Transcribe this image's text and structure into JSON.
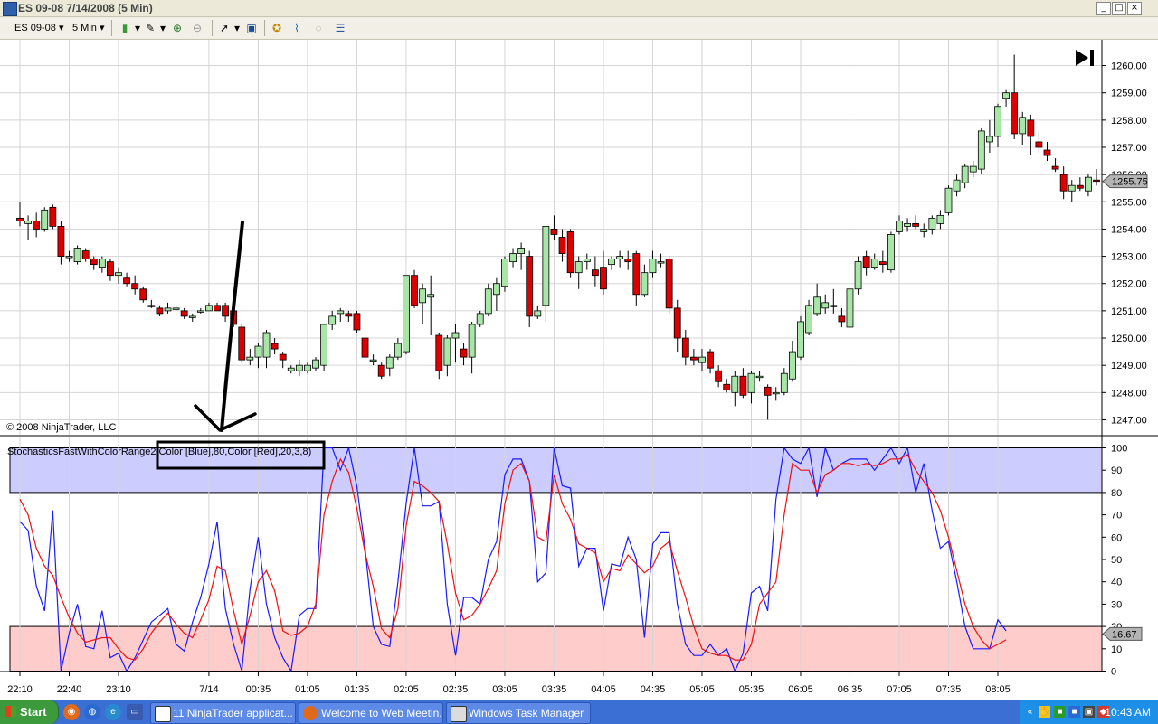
{
  "window": {
    "title": "ES 09-08  7/14/2008 (5 Min)"
  },
  "toolbar": {
    "instrument": "ES 09-08",
    "interval": "5 Min"
  },
  "copyright": "© 2008 NinjaTrader, LLC",
  "indicator_label": {
    "prefix": "StochasticsFastWithColorRange",
    "boxed": "2,Color [Blue],80,Color [Red],20,3,8)"
  },
  "colors": {
    "up": "#a8e6a8",
    "down": "#dd0000",
    "k_line": "#1a1aff",
    "d_line": "#ee1111",
    "upper_band": "#ccccff",
    "lower_band": "#ffcccc"
  },
  "chart_data": [
    {
      "type": "candlestick",
      "title": "",
      "y_ticks": [
        1247,
        1248,
        1249,
        1250,
        1251,
        1252,
        1253,
        1254,
        1255,
        1256,
        1257,
        1258,
        1259,
        1260
      ],
      "y_tick_labels": [
        "1247.00",
        "1248.00",
        "1249.00",
        "1250.00",
        "1251.00",
        "1252.00",
        "1253.00",
        "1254.00",
        "1255.00",
        "1256.00",
        "1257.00",
        "1258.00",
        "1259.00",
        "1260.00"
      ],
      "ylim": [
        1246.75,
        1260.4
      ],
      "last_price": "1255.75",
      "x_tick_labels": [
        "22:10",
        "22:40",
        "23:10",
        "7/14",
        "00:35",
        "01:05",
        "01:35",
        "02:05",
        "02:35",
        "03:05",
        "03:35",
        "04:05",
        "04:35",
        "05:05",
        "05:35",
        "06:05",
        "06:35",
        "07:05",
        "07:35",
        "08:05"
      ],
      "x_tick_bar_index": [
        0,
        6,
        12,
        23,
        29,
        35,
        41,
        47,
        53,
        59,
        65,
        71,
        77,
        83,
        89,
        95,
        101,
        107,
        113,
        119
      ],
      "grid": true,
      "ohlc": [
        [
          1254.4,
          1255.0,
          1254.1,
          1254.3
        ],
        [
          1254.2,
          1254.5,
          1253.6,
          1254.3
        ],
        [
          1254.3,
          1254.6,
          1253.7,
          1254.0
        ],
        [
          1254.0,
          1254.8,
          1253.9,
          1254.7
        ],
        [
          1254.8,
          1254.9,
          1254.0,
          1254.1
        ],
        [
          1254.1,
          1254.3,
          1252.7,
          1253.0
        ],
        [
          1253.0,
          1253.2,
          1252.8,
          1253.0
        ],
        [
          1252.8,
          1253.4,
          1252.7,
          1253.3
        ],
        [
          1253.2,
          1253.3,
          1252.8,
          1252.9
        ],
        [
          1252.9,
          1253.0,
          1252.5,
          1252.7
        ],
        [
          1252.6,
          1253.0,
          1252.4,
          1252.9
        ],
        [
          1252.8,
          1252.9,
          1252.1,
          1252.3
        ],
        [
          1252.3,
          1252.6,
          1252.0,
          1252.4
        ],
        [
          1252.2,
          1252.4,
          1251.9,
          1252.0
        ],
        [
          1252.0,
          1252.3,
          1251.6,
          1251.8
        ],
        [
          1251.8,
          1251.9,
          1251.3,
          1251.4
        ],
        [
          1251.2,
          1251.4,
          1251.1,
          1251.2
        ],
        [
          1251.1,
          1251.2,
          1250.8,
          1250.9
        ],
        [
          1251.0,
          1251.3,
          1250.9,
          1251.1
        ],
        [
          1251.1,
          1251.2,
          1251.0,
          1251.1
        ],
        [
          1251.0,
          1251.1,
          1250.7,
          1250.8
        ],
        [
          1250.8,
          1250.9,
          1250.6,
          1250.8
        ],
        [
          1251.0,
          1251.1,
          1250.9,
          1251.0
        ],
        [
          1251.0,
          1251.3,
          1251.0,
          1251.2
        ],
        [
          1251.2,
          1251.3,
          1251.0,
          1251.0
        ],
        [
          1251.2,
          1251.3,
          1250.6,
          1250.8
        ],
        [
          1251.0,
          1251.1,
          1250.4,
          1250.5
        ],
        [
          1250.4,
          1250.5,
          1249.1,
          1249.2
        ],
        [
          1249.2,
          1249.6,
          1249.0,
          1249.3
        ],
        [
          1249.3,
          1249.8,
          1248.9,
          1249.7
        ],
        [
          1249.3,
          1250.3,
          1248.9,
          1250.2
        ],
        [
          1249.8,
          1250.0,
          1249.4,
          1249.6
        ],
        [
          1249.4,
          1249.5,
          1248.9,
          1249.2
        ],
        [
          1248.8,
          1249.0,
          1248.7,
          1248.9
        ],
        [
          1248.8,
          1249.2,
          1248.6,
          1249.0
        ],
        [
          1248.8,
          1249.1,
          1248.7,
          1249.0
        ],
        [
          1248.9,
          1249.3,
          1248.8,
          1249.2
        ],
        [
          1249.0,
          1250.5,
          1248.8,
          1250.5
        ],
        [
          1250.5,
          1251.0,
          1250.3,
          1250.8
        ],
        [
          1250.9,
          1251.1,
          1250.6,
          1251.0
        ],
        [
          1250.9,
          1251.0,
          1250.6,
          1250.8
        ],
        [
          1250.9,
          1251.0,
          1250.2,
          1250.3
        ],
        [
          1250.0,
          1250.1,
          1249.2,
          1249.3
        ],
        [
          1249.2,
          1249.4,
          1249.0,
          1249.2
        ],
        [
          1249.0,
          1249.1,
          1248.5,
          1248.6
        ],
        [
          1248.9,
          1249.4,
          1248.6,
          1249.3
        ],
        [
          1249.3,
          1250.0,
          1249.2,
          1249.8
        ],
        [
          1249.5,
          1252.3,
          1249.4,
          1252.3
        ],
        [
          1252.3,
          1252.5,
          1251.1,
          1251.2
        ],
        [
          1251.3,
          1252.0,
          1250.5,
          1251.8
        ],
        [
          1251.5,
          1252.3,
          1250.1,
          1251.6
        ],
        [
          1250.1,
          1250.2,
          1248.5,
          1248.8
        ],
        [
          1249.0,
          1250.1,
          1248.6,
          1250.0
        ],
        [
          1250.0,
          1250.5,
          1249.1,
          1250.2
        ],
        [
          1249.6,
          1249.8,
          1249.0,
          1249.3
        ],
        [
          1249.3,
          1250.6,
          1248.7,
          1250.5
        ],
        [
          1250.5,
          1251.0,
          1250.4,
          1250.9
        ],
        [
          1250.9,
          1252.0,
          1250.8,
          1251.8
        ],
        [
          1251.6,
          1252.2,
          1251.0,
          1252.0
        ],
        [
          1251.9,
          1253.0,
          1251.7,
          1252.9
        ],
        [
          1252.8,
          1253.3,
          1252.6,
          1253.1
        ],
        [
          1253.1,
          1253.5,
          1252.5,
          1253.3
        ],
        [
          1253.0,
          1253.2,
          1250.4,
          1250.8
        ],
        [
          1250.8,
          1251.2,
          1250.7,
          1251.0
        ],
        [
          1251.2,
          1254.1,
          1250.6,
          1254.1
        ],
        [
          1254.0,
          1254.5,
          1253.6,
          1253.8
        ],
        [
          1253.7,
          1254.0,
          1252.8,
          1253.1
        ],
        [
          1253.9,
          1254.0,
          1252.2,
          1252.4
        ],
        [
          1252.4,
          1253.0,
          1251.8,
          1252.8
        ],
        [
          1252.8,
          1253.1,
          1252.5,
          1252.9
        ],
        [
          1252.5,
          1253.0,
          1251.9,
          1252.3
        ],
        [
          1252.6,
          1253.2,
          1251.6,
          1251.8
        ],
        [
          1252.7,
          1253.0,
          1252.5,
          1252.9
        ],
        [
          1252.9,
          1253.2,
          1252.6,
          1253.0
        ],
        [
          1252.9,
          1253.2,
          1252.5,
          1252.8
        ],
        [
          1253.1,
          1253.2,
          1251.2,
          1251.6
        ],
        [
          1251.6,
          1252.7,
          1251.5,
          1252.4
        ],
        [
          1252.4,
          1253.2,
          1252.2,
          1252.9
        ],
        [
          1252.8,
          1253.1,
          1252.6,
          1252.8
        ],
        [
          1252.9,
          1253.0,
          1250.9,
          1251.1
        ],
        [
          1251.1,
          1251.4,
          1249.5,
          1250.0
        ],
        [
          1250.0,
          1250.3,
          1249.0,
          1249.3
        ],
        [
          1249.3,
          1249.6,
          1249.0,
          1249.2
        ],
        [
          1249.1,
          1249.6,
          1248.8,
          1249.3
        ],
        [
          1249.5,
          1249.6,
          1248.7,
          1248.9
        ],
        [
          1248.8,
          1249.0,
          1248.2,
          1248.4
        ],
        [
          1248.3,
          1248.5,
          1248.0,
          1248.1
        ],
        [
          1248.0,
          1248.8,
          1247.5,
          1248.6
        ],
        [
          1248.6,
          1248.9,
          1247.8,
          1247.9
        ],
        [
          1248.0,
          1248.8,
          1247.6,
          1248.7
        ],
        [
          1248.6,
          1248.8,
          1248.4,
          1248.6
        ],
        [
          1248.2,
          1248.3,
          1247.0,
          1247.9
        ],
        [
          1248.0,
          1248.2,
          1247.7,
          1248.0
        ],
        [
          1248.0,
          1248.9,
          1247.9,
          1248.7
        ],
        [
          1248.5,
          1249.9,
          1248.4,
          1249.5
        ],
        [
          1249.3,
          1250.8,
          1249.2,
          1250.6
        ],
        [
          1250.2,
          1251.4,
          1250.1,
          1251.2
        ],
        [
          1250.9,
          1252.0,
          1250.8,
          1251.5
        ],
        [
          1251.1,
          1251.6,
          1250.9,
          1251.3
        ],
        [
          1251.2,
          1251.8,
          1250.9,
          1251.2
        ],
        [
          1250.8,
          1251.1,
          1250.4,
          1250.6
        ],
        [
          1250.4,
          1251.8,
          1250.3,
          1251.8
        ],
        [
          1251.8,
          1253.0,
          1251.6,
          1252.8
        ],
        [
          1253.0,
          1253.2,
          1252.3,
          1252.6
        ],
        [
          1252.6,
          1253.1,
          1252.5,
          1252.9
        ],
        [
          1252.8,
          1253.2,
          1252.4,
          1252.7
        ],
        [
          1252.5,
          1253.9,
          1252.4,
          1253.8
        ],
        [
          1253.9,
          1254.5,
          1253.8,
          1254.3
        ],
        [
          1254.1,
          1254.4,
          1253.9,
          1254.2
        ],
        [
          1254.2,
          1254.5,
          1254.0,
          1254.1
        ],
        [
          1253.9,
          1254.2,
          1253.7,
          1254.0
        ],
        [
          1254.0,
          1254.5,
          1253.8,
          1254.4
        ],
        [
          1254.2,
          1254.7,
          1254.0,
          1254.5
        ],
        [
          1254.6,
          1255.6,
          1254.5,
          1255.5
        ],
        [
          1255.4,
          1256.0,
          1255.2,
          1255.8
        ],
        [
          1255.7,
          1256.4,
          1255.5,
          1256.3
        ],
        [
          1256.1,
          1256.5,
          1255.9,
          1256.3
        ],
        [
          1256.2,
          1257.7,
          1256.0,
          1257.6
        ],
        [
          1257.2,
          1258.0,
          1256.8,
          1257.4
        ],
        [
          1257.4,
          1258.6,
          1257.0,
          1258.5
        ],
        [
          1258.8,
          1259.1,
          1258.5,
          1259.0
        ],
        [
          1259.0,
          1260.4,
          1257.3,
          1257.5
        ],
        [
          1257.5,
          1258.3,
          1257.1,
          1258.1
        ],
        [
          1258.0,
          1258.2,
          1256.7,
          1257.4
        ],
        [
          1257.2,
          1257.6,
          1256.8,
          1257.0
        ],
        [
          1256.9,
          1257.2,
          1256.5,
          1256.7
        ],
        [
          1256.3,
          1256.6,
          1256.1,
          1256.2
        ],
        [
          1256.0,
          1256.3,
          1255.1,
          1255.4
        ],
        [
          1255.4,
          1255.8,
          1255.0,
          1255.6
        ],
        [
          1255.6,
          1255.9,
          1255.4,
          1255.5
        ],
        [
          1255.4,
          1256.0,
          1255.2,
          1255.9
        ],
        [
          1255.8,
          1256.2,
          1255.6,
          1255.75
        ]
      ]
    },
    {
      "type": "line",
      "title": "",
      "y_ticks": [
        0,
        10,
        20,
        30,
        40,
        50,
        60,
        70,
        80,
        90,
        100
      ],
      "ylim": [
        0,
        100
      ],
      "upper_band": [
        80,
        100
      ],
      "lower_band": [
        0,
        20
      ],
      "last_value": "16.67",
      "series": [
        {
          "values": [
            67,
            63,
            38,
            27,
            72,
            0,
            17,
            30,
            11,
            10,
            27,
            6,
            8,
            0,
            6,
            14,
            22,
            25,
            28,
            12,
            9,
            22,
            33,
            48,
            67,
            28,
            12,
            0,
            37,
            60,
            30,
            15,
            6,
            0,
            25,
            28,
            28,
            100,
            100,
            90,
            100,
            83,
            55,
            20,
            12,
            11,
            40,
            75,
            100,
            74,
            74,
            76,
            30,
            7,
            33,
            33,
            30,
            50,
            58,
            88,
            95,
            95,
            85,
            40,
            44,
            100,
            83,
            82,
            47,
            55,
            55,
            27,
            48,
            47,
            60,
            50,
            15,
            57,
            62,
            62,
            30,
            12,
            7,
            7,
            12,
            7,
            10,
            0,
            8,
            35,
            38,
            27,
            77,
            100,
            95,
            93,
            100,
            78,
            100,
            90,
            93,
            95,
            95,
            95,
            90,
            95,
            100,
            93,
            100,
            80,
            93,
            72,
            55,
            58,
            40,
            20,
            10,
            10,
            10,
            23,
            18
          ]
        },
        {
          "values": [
            77,
            70,
            55,
            47,
            43,
            33,
            24,
            17,
            13,
            14,
            15,
            15,
            10,
            6,
            5,
            10,
            17,
            22,
            26,
            21,
            17,
            15,
            23,
            32,
            47,
            45,
            27,
            12,
            25,
            40,
            45,
            36,
            18,
            16,
            17,
            20,
            30,
            70,
            85,
            95,
            89,
            73,
            53,
            38,
            19,
            15,
            28,
            65,
            85,
            83,
            80,
            76,
            57,
            35,
            23,
            25,
            30,
            37,
            45,
            75,
            90,
            93,
            85,
            60,
            58,
            88,
            75,
            68,
            57,
            55,
            53,
            40,
            46,
            45,
            52,
            48,
            44,
            47,
            55,
            58,
            45,
            33,
            20,
            10,
            8,
            7,
            7,
            5,
            5,
            12,
            30,
            35,
            40,
            70,
            93,
            90,
            90,
            80,
            88,
            90,
            93,
            93,
            92,
            93,
            92,
            93,
            95,
            95,
            97,
            90,
            85,
            80,
            72,
            60,
            45,
            30,
            20,
            14,
            10,
            12,
            14
          ]
        }
      ]
    }
  ]
}
